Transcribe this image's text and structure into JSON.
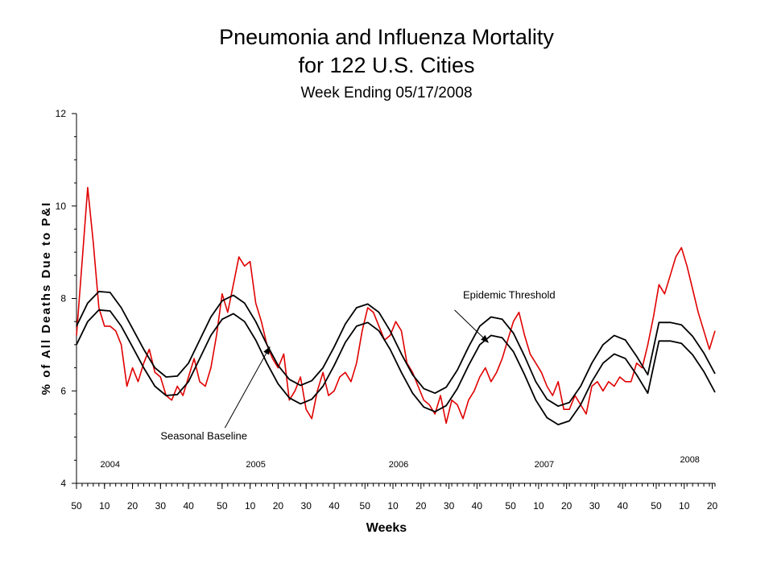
{
  "chart_data": {
    "type": "line",
    "title": "Pneumonia and Influenza Mortality",
    "title_line2": "for 122 U.S. Cities",
    "subtitle": "Week Ending 05/17/2008",
    "xlabel": "Weeks",
    "ylabel": "% of All Deaths Due to P&I",
    "ylim": [
      4,
      12
    ],
    "y_ticks": [
      "4",
      "6",
      "8",
      "10",
      "12"
    ],
    "x_range": [
      0,
      228
    ],
    "x_ticks": [
      {
        "week_index": 0,
        "label": "50"
      },
      {
        "week_index": 10,
        "label": "10"
      },
      {
        "week_index": 20,
        "label": "20"
      },
      {
        "week_index": 30,
        "label": "30"
      },
      {
        "week_index": 40,
        "label": "40"
      },
      {
        "week_index": 52,
        "label": "50"
      },
      {
        "week_index": 62,
        "label": "10"
      },
      {
        "week_index": 72,
        "label": "20"
      },
      {
        "week_index": 82,
        "label": "30"
      },
      {
        "week_index": 92,
        "label": "40"
      },
      {
        "week_index": 103,
        "label": "50"
      },
      {
        "week_index": 113,
        "label": "10"
      },
      {
        "week_index": 123,
        "label": "20"
      },
      {
        "week_index": 133,
        "label": "30"
      },
      {
        "week_index": 143,
        "label": "40"
      },
      {
        "week_index": 155,
        "label": "50"
      },
      {
        "week_index": 165,
        "label": "10"
      },
      {
        "week_index": 175,
        "label": "20"
      },
      {
        "week_index": 185,
        "label": "30"
      },
      {
        "week_index": 195,
        "label": "40"
      },
      {
        "week_index": 207,
        "label": "50"
      },
      {
        "week_index": 217,
        "label": "10"
      },
      {
        "week_index": 227,
        "label": "20"
      }
    ],
    "year_labels": [
      {
        "week_index": 12,
        "value": 4.35,
        "label": "2004"
      },
      {
        "week_index": 64,
        "value": 4.35,
        "label": "2005"
      },
      {
        "week_index": 115,
        "value": 4.35,
        "label": "2006"
      },
      {
        "week_index": 167,
        "value": 4.35,
        "label": "2007"
      },
      {
        "week_index": 219,
        "value": 4.45,
        "label": "2008"
      }
    ],
    "annotations": [
      {
        "label": "Epidemic Threshold",
        "text_week": 138,
        "text_value": 8.0,
        "arrow_from": [
          135,
          7.75
        ],
        "arrow_to": [
          147,
          7.05
        ]
      },
      {
        "label": "Seasonal Baseline",
        "text_week": 30,
        "text_value": 4.95,
        "arrow_from": [
          53,
          5.2
        ],
        "arrow_to": [
          69,
          6.95
        ]
      }
    ],
    "grid": false,
    "series": [
      {
        "color": "#e00000",
        "x": [
          0,
          2,
          4,
          6,
          8,
          10,
          12,
          14,
          16,
          18,
          20,
          22,
          24,
          26,
          28,
          30,
          32,
          34,
          36,
          38,
          40,
          42,
          44,
          46,
          48,
          50,
          52,
          54,
          56,
          58,
          60,
          62,
          64,
          66,
          68,
          70,
          72,
          74,
          76,
          78,
          80,
          82,
          84,
          86,
          88,
          90,
          92,
          94,
          96,
          98,
          100,
          102,
          104,
          106,
          108,
          110,
          112,
          114,
          116,
          118,
          120,
          122,
          124,
          126,
          128,
          130,
          132,
          134,
          136,
          138,
          140,
          142,
          144,
          146,
          148,
          150,
          152,
          154,
          156,
          158,
          160,
          162,
          164,
          166,
          168,
          170,
          172,
          174,
          176,
          178,
          180,
          182,
          184,
          186,
          188,
          190,
          192,
          194,
          196,
          198,
          200,
          202,
          204,
          206,
          208,
          210,
          212,
          214,
          216,
          218,
          220,
          222,
          224,
          226,
          228
        ],
        "values": [
          7.2,
          8.8,
          10.4,
          9.2,
          7.8,
          7.4,
          7.4,
          7.3,
          7.0,
          6.1,
          6.5,
          6.2,
          6.6,
          6.9,
          6.4,
          6.3,
          5.9,
          5.8,
          6.1,
          5.9,
          6.3,
          6.7,
          6.2,
          6.1,
          6.5,
          7.2,
          8.1,
          7.7,
          8.3,
          8.9,
          8.7,
          8.8,
          7.9,
          7.5,
          7.0,
          6.7,
          6.5,
          6.8,
          5.8,
          6.0,
          6.3,
          5.6,
          5.4,
          6.0,
          6.4,
          5.9,
          6.0,
          6.3,
          6.4,
          6.2,
          6.6,
          7.3,
          7.8,
          7.7,
          7.4,
          7.1,
          7.2,
          7.5,
          7.3,
          6.6,
          6.4,
          6.1,
          5.8,
          5.7,
          5.5,
          5.9,
          5.3,
          5.8,
          5.7,
          5.4,
          5.8,
          6.0,
          6.3,
          6.5,
          6.2,
          6.4,
          6.7,
          7.1,
          7.5,
          7.7,
          7.2,
          6.8,
          6.6,
          6.4,
          6.1,
          5.9,
          6.2,
          5.6,
          5.6,
          5.9,
          5.7,
          5.5,
          6.1,
          6.2,
          6.0,
          6.2,
          6.1,
          6.3,
          6.2,
          6.2,
          6.6,
          6.5,
          7.0,
          7.6,
          8.3,
          8.1,
          8.5,
          8.9,
          9.1,
          8.7,
          8.2,
          7.7,
          7.3,
          6.9,
          7.3
        ]
      },
      {
        "color": "#000000",
        "x": [
          0,
          4,
          8,
          12,
          16,
          20,
          24,
          28,
          32,
          36,
          40,
          44,
          48,
          52,
          56,
          60,
          64,
          68,
          72,
          76,
          80,
          84,
          88,
          92,
          96,
          100,
          104,
          108,
          112,
          116,
          120,
          124,
          128,
          132,
          136,
          140,
          144,
          148,
          152,
          156,
          160,
          164,
          168,
          172,
          176,
          180,
          184,
          188,
          192,
          196,
          200,
          204,
          208,
          212,
          216,
          220,
          224,
          228
        ],
        "values": [
          7.0,
          7.5,
          7.75,
          7.73,
          7.4,
          6.95,
          6.5,
          6.1,
          5.9,
          5.92,
          6.2,
          6.7,
          7.2,
          7.55,
          7.67,
          7.5,
          7.1,
          6.6,
          6.15,
          5.85,
          5.72,
          5.82,
          6.1,
          6.55,
          7.05,
          7.4,
          7.48,
          7.3,
          6.9,
          6.4,
          5.95,
          5.65,
          5.55,
          5.68,
          6.05,
          6.55,
          7.0,
          7.2,
          7.15,
          6.85,
          6.35,
          5.8,
          5.42,
          5.27,
          5.35,
          5.7,
          6.2,
          6.6,
          6.8,
          6.7,
          6.35,
          5.95,
          7.08,
          7.08,
          7.03,
          6.78,
          6.42,
          5.97
        ]
      },
      {
        "color": "#000000",
        "x": [
          0,
          4,
          8,
          12,
          16,
          20,
          24,
          28,
          32,
          36,
          40,
          44,
          48,
          52,
          56,
          60,
          64,
          68,
          72,
          76,
          80,
          84,
          88,
          92,
          96,
          100,
          104,
          108,
          112,
          116,
          120,
          124,
          128,
          132,
          136,
          140,
          144,
          148,
          152,
          156,
          160,
          164,
          168,
          172,
          176,
          180,
          184,
          188,
          192,
          196,
          200,
          204,
          208,
          212,
          216,
          220,
          224,
          228
        ],
        "values": [
          7.4,
          7.9,
          8.15,
          8.13,
          7.8,
          7.35,
          6.9,
          6.5,
          6.3,
          6.32,
          6.6,
          7.1,
          7.6,
          7.95,
          8.07,
          7.9,
          7.5,
          7.0,
          6.55,
          6.25,
          6.12,
          6.22,
          6.5,
          6.95,
          7.45,
          7.8,
          7.88,
          7.7,
          7.3,
          6.8,
          6.35,
          6.05,
          5.95,
          6.08,
          6.45,
          6.95,
          7.4,
          7.6,
          7.55,
          7.25,
          6.75,
          6.2,
          5.82,
          5.67,
          5.75,
          6.1,
          6.6,
          7.0,
          7.2,
          7.1,
          6.75,
          6.35,
          7.48,
          7.48,
          7.43,
          7.18,
          6.82,
          6.37
        ]
      }
    ]
  }
}
